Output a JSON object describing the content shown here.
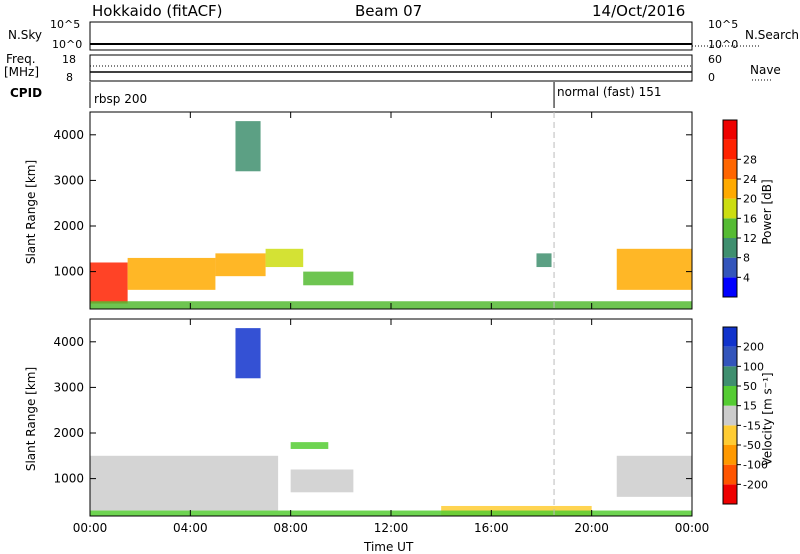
{
  "header": {
    "title": "Hokkaido (fitACF)",
    "beam": "Beam 07",
    "date": "14/Oct/2016"
  },
  "noise_panel": {
    "left_label": "N.Sky",
    "left_top_tick": "10^5",
    "left_bottom_tick": "10^0",
    "right_label": "N.Search",
    "right_top_tick": "10^5",
    "right_bottom_tick": "10^0"
  },
  "freq_panel": {
    "left_label_line1": "Freq.",
    "left_label_line2": "[MHz]",
    "left_top_tick": "18",
    "left_bottom_tick": "8",
    "right_label": "Nave",
    "right_top_tick": "60",
    "right_bottom_tick": "0"
  },
  "cpid_panel": {
    "label": "CPID",
    "modes": [
      {
        "name": "rbsp 200",
        "start": "00:00"
      },
      {
        "name": "normal (fast) 151",
        "start": "18:30"
      }
    ]
  },
  "power_panel": {
    "ylabel": "Slant Range [km]",
    "yticks": [
      "1000",
      "2000",
      "3000",
      "4000"
    ],
    "colorbar_label": "Power [dB]",
    "colorbar_ticks": [
      "4",
      "8",
      "12",
      "16",
      "20",
      "24",
      "28"
    ],
    "colorbar_colors": [
      "#0000ff",
      "#3355bb",
      "#3f8f6f",
      "#55bb33",
      "#ccdd11",
      "#ffaa00",
      "#ff6600",
      "#ff2200",
      "#ee0000"
    ]
  },
  "velocity_panel": {
    "ylabel": "Slant Range [km]",
    "yticks": [
      "1000",
      "2000",
      "3000",
      "4000"
    ],
    "colorbar_label": "Velocity [m s⁻¹]",
    "colorbar_ticks": [
      "200",
      "100",
      "50",
      "15",
      "-15",
      "-50",
      "-100",
      "-200"
    ],
    "colorbar_colors": [
      "#1133cc",
      "#3355bb",
      "#3f8f6f",
      "#55cc33",
      "#cccccc",
      "#ffcc33",
      "#ff9900",
      "#ff5500",
      "#ee0000"
    ]
  },
  "xaxis": {
    "label": "Time UT",
    "ticks": [
      "00:00",
      "04:00",
      "08:00",
      "12:00",
      "16:00",
      "20:00",
      "00:00"
    ]
  },
  "chart_data": {
    "type": "heatmap",
    "x_range_hours": [
      0,
      24
    ],
    "y_range_km": [
      180,
      4500
    ],
    "marker_time_hours": 18.5,
    "power_regions_dB": [
      {
        "t0": 0.0,
        "t1": 1.5,
        "r0": 300,
        "r1": 1200,
        "value": 28
      },
      {
        "t0": 1.5,
        "t1": 5.0,
        "r0": 600,
        "r1": 1300,
        "value": 22
      },
      {
        "t0": 5.0,
        "t1": 7.0,
        "r0": 900,
        "r1": 1400,
        "value": 20
      },
      {
        "t0": 7.0,
        "t1": 8.5,
        "r0": 1100,
        "r1": 1500,
        "value": 18
      },
      {
        "t0": 8.5,
        "t1": 10.5,
        "r0": 700,
        "r1": 1000,
        "value": 12
      },
      {
        "t0": 17.8,
        "t1": 18.4,
        "r0": 1100,
        "r1": 1400,
        "value": 10
      },
      {
        "t0": 21.0,
        "t1": 24.0,
        "r0": 600,
        "r1": 1500,
        "value": 22
      },
      {
        "t0": 5.8,
        "t1": 6.8,
        "r0": 3200,
        "r1": 4300,
        "value": 8
      },
      {
        "t0": 0.0,
        "t1": 24.0,
        "r0": 180,
        "r1": 350,
        "value": 14
      }
    ],
    "velocity_regions_ms": [
      {
        "t0": 0.0,
        "t1": 7.5,
        "r0": 300,
        "r1": 1500,
        "value": 0
      },
      {
        "t0": 8.0,
        "t1": 10.5,
        "r0": 700,
        "r1": 1200,
        "value": 0
      },
      {
        "t0": 21.0,
        "t1": 24.0,
        "r0": 600,
        "r1": 1500,
        "value": 0
      },
      {
        "t0": 5.8,
        "t1": 6.8,
        "r0": 3200,
        "r1": 4300,
        "value": 200
      },
      {
        "t0": 8.0,
        "t1": 9.5,
        "r0": 1650,
        "r1": 1800,
        "value": 30
      },
      {
        "t0": 14.0,
        "t1": 20.0,
        "r0": 180,
        "r1": 400,
        "value": -50
      },
      {
        "t0": 0.0,
        "t1": 24.0,
        "r0": 180,
        "r1": 300,
        "value": 30
      }
    ]
  }
}
